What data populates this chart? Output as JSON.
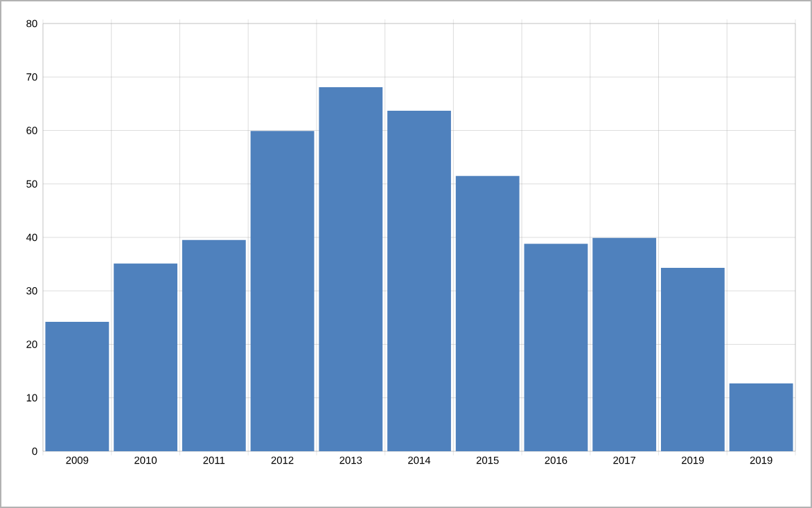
{
  "chart_data": {
    "type": "bar",
    "categories": [
      "2009",
      "2010",
      "2011",
      "2012",
      "2013",
      "2014",
      "2015",
      "2016",
      "2017",
      "2019",
      "2019"
    ],
    "values": [
      24.2,
      35.1,
      39.5,
      59.9,
      68.1,
      63.7,
      51.5,
      38.8,
      39.9,
      34.3,
      12.7
    ],
    "color": "#4f81bd",
    "ylim": [
      0,
      80
    ],
    "yticks": [
      0,
      10,
      20,
      30,
      40,
      50,
      60,
      70,
      80
    ],
    "grid": true
  }
}
